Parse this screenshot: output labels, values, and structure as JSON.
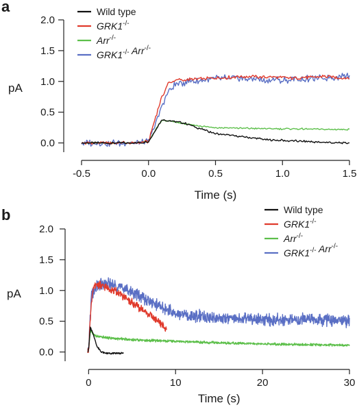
{
  "panel_labels": [
    "a",
    "b"
  ],
  "legend_sup": "-/-",
  "chart_data": [
    {
      "panel": "a",
      "type": "line",
      "xlabel": "Time (s)",
      "ylabel": "pA",
      "xlim": [
        -0.5,
        1.5
      ],
      "ylim": [
        -0.15,
        2.0
      ],
      "xticks": [
        "-0.5",
        "0.0",
        "0.5",
        "1.0",
        "1.5"
      ],
      "xtick_values": [
        -0.5,
        0.0,
        0.5,
        1.0,
        1.5
      ],
      "yticks": [
        "0.0",
        "0.5",
        "1.0",
        "1.5",
        "2.0"
      ],
      "ytick_values": [
        0.0,
        0.5,
        1.0,
        1.5,
        2.0
      ],
      "legend_placement": "top-left",
      "series": [
        {
          "name": "Wild type",
          "gene": "Wild type",
          "color": "#111111",
          "x": [
            -0.5,
            -0.3,
            -0.1,
            0.0,
            0.05,
            0.1,
            0.2,
            0.3,
            0.4,
            0.5,
            0.7,
            0.9,
            1.1,
            1.3,
            1.5
          ],
          "y": [
            0.0,
            0.0,
            0.0,
            0.02,
            0.2,
            0.38,
            0.35,
            0.3,
            0.22,
            0.15,
            0.1,
            0.05,
            0.03,
            0.01,
            0.0
          ]
        },
        {
          "name": "GRK1-/-",
          "gene": "GRK1",
          "color": "#e03a2c",
          "x": [
            -0.5,
            -0.3,
            -0.1,
            0.0,
            0.05,
            0.1,
            0.15,
            0.2,
            0.3,
            0.5,
            0.7,
            0.9,
            1.1,
            1.3,
            1.5
          ],
          "y": [
            0.0,
            0.0,
            0.0,
            0.02,
            0.4,
            0.75,
            0.98,
            1.02,
            1.03,
            1.05,
            1.08,
            1.07,
            1.05,
            1.08,
            1.05
          ]
        },
        {
          "name": "Arr-/-",
          "gene": "Arr",
          "color": "#5cbf4a",
          "x": [
            -0.5,
            -0.3,
            -0.1,
            0.0,
            0.05,
            0.1,
            0.2,
            0.3,
            0.4,
            0.5,
            0.7,
            0.9,
            1.1,
            1.3,
            1.5
          ],
          "y": [
            0.0,
            0.0,
            0.0,
            0.02,
            0.2,
            0.37,
            0.34,
            0.3,
            0.27,
            0.25,
            0.24,
            0.23,
            0.23,
            0.22,
            0.22
          ]
        },
        {
          "name": "GRK1-/- Arr-/-",
          "gene": "GRK1 Arr",
          "color": "#5a6fc4",
          "x": [
            -0.5,
            -0.3,
            -0.1,
            0.0,
            0.05,
            0.1,
            0.15,
            0.2,
            0.3,
            0.5,
            0.7,
            0.9,
            1.1,
            1.3,
            1.5
          ],
          "y": [
            0.0,
            0.0,
            0.0,
            0.02,
            0.3,
            0.6,
            0.85,
            0.95,
            1.0,
            1.05,
            1.05,
            1.02,
            1.03,
            1.05,
            1.1
          ]
        }
      ]
    },
    {
      "panel": "b",
      "type": "line",
      "xlabel": "Time (s)",
      "ylabel": "pA",
      "xlim": [
        -0.5,
        30
      ],
      "ylim": [
        -0.15,
        2.0
      ],
      "xticks": [
        "0",
        "10",
        "20",
        "30"
      ],
      "xtick_values": [
        0,
        10,
        20,
        30
      ],
      "yticks": [
        "0.0",
        "0.5",
        "1.0",
        "1.5",
        "2.0"
      ],
      "ytick_values": [
        0.0,
        0.5,
        1.0,
        1.5,
        2.0
      ],
      "legend_placement": "top-right",
      "series": [
        {
          "name": "Wild type",
          "gene": "Wild type",
          "color": "#111111",
          "x": [
            -0.1,
            0.0,
            0.2,
            0.5,
            1.0,
            1.5,
            2.0,
            3.0,
            4.0
          ],
          "y": [
            0.0,
            0.05,
            0.4,
            0.3,
            0.08,
            0.0,
            -0.02,
            -0.02,
            -0.02
          ]
        },
        {
          "name": "GRK1-/-",
          "gene": "GRK1",
          "color": "#e03a2c",
          "x": [
            -0.1,
            0.0,
            0.3,
            0.6,
            1.0,
            2.0,
            3.0,
            4.0,
            5.0,
            6.0,
            7.0,
            8.0,
            9.0
          ],
          "y": [
            0.0,
            0.05,
            0.8,
            1.05,
            1.1,
            1.05,
            1.0,
            0.9,
            0.8,
            0.7,
            0.6,
            0.5,
            0.38
          ]
        },
        {
          "name": "Arr-/-",
          "gene": "Arr",
          "color": "#5cbf4a",
          "x": [
            -0.1,
            0.0,
            0.2,
            0.6,
            1.0,
            3.0,
            5.0,
            10.0,
            15.0,
            20.0,
            25.0,
            30.0
          ],
          "y": [
            0.0,
            0.05,
            0.35,
            0.28,
            0.25,
            0.22,
            0.2,
            0.17,
            0.15,
            0.13,
            0.12,
            0.11
          ]
        },
        {
          "name": "GRK1-/- Arr-/-",
          "gene": "GRK1 Arr",
          "color": "#5a6fc4",
          "x": [
            -0.1,
            0.0,
            0.3,
            0.8,
            1.5,
            2.5,
            4.0,
            6.0,
            8.0,
            10.0,
            14.0,
            18.0,
            22.0,
            26.0,
            30.0
          ],
          "y": [
            0.0,
            0.05,
            0.9,
            1.05,
            1.1,
            1.1,
            1.05,
            0.9,
            0.75,
            0.62,
            0.56,
            0.53,
            0.52,
            0.52,
            0.5
          ]
        }
      ]
    }
  ]
}
